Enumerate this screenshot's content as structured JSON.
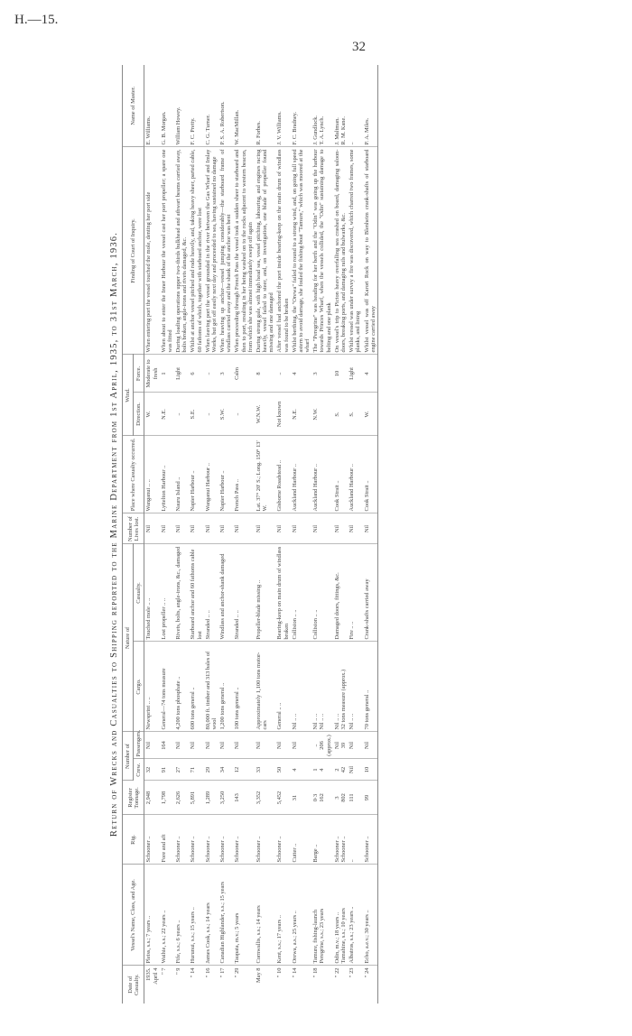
{
  "page": {
    "reference": "H.—15.",
    "number": "32"
  },
  "title": "Return of Wrecks and Casualties to Shipping reported to the Marine Department from 1st April, 1935, to 31st March, 1936.",
  "headers": {
    "date": "Date of Casualty.",
    "vessel": "Vessel's Name, Class, and Age.",
    "rig": "Rig.",
    "tonnage": "Register Tonnage.",
    "number_of": "Number of",
    "crew": "Crew.",
    "passengers": "Passengers.",
    "nature_of": "Nature of",
    "cargo": "Cargo.",
    "casualty": "Casualty.",
    "lives": "Number of Lives lost.",
    "place": "Place where Casualty occurred.",
    "wind": "Wind.",
    "direction": "Direction.",
    "force": "Force.",
    "finding": "Finding of Court of Inquiry.",
    "master": "Name of Master."
  },
  "rows": [
    {
      "date": "1935.\nApril 4",
      "vessel": "Pleiss, s.s.; 7 years ..",
      "rig": "Schooner ..",
      "tonnage": "2,948",
      "crew": "32",
      "passengers": "Nil",
      "cargo": "Newsprint .. ..",
      "casualty": "Touched mole .. ..",
      "lives": "Nil",
      "place": "Wanganui .. ..",
      "direction": "W.",
      "force": "Moderate to fresh",
      "finding": "When entering port the vessel touched the mole, denting her port side",
      "master": "E. Williams."
    },
    {
      "date": "\" 7",
      "vessel": "Waihie, s.s.; 22 years ..",
      "rig": "Fore and aft",
      "tonnage": "1,798",
      "crew": "91",
      "passengers": "164",
      "cargo": "General—74 tons measure",
      "casualty": "Lost propeller .. ..",
      "lives": "Nil",
      "place": "Lyttelton Harbour ..",
      "direction": "N.E.",
      "force": "1",
      "finding": "When about to enter the Inner Harbour the vessel cast her port propeller; a spare one was fitted",
      "master": "G. B. Morgan."
    },
    {
      "date": "\" 9",
      "vessel": "Fife, s.s.; 6 years ..",
      "rig": "Schooner ..",
      "tonnage": "2,626",
      "crew": "27",
      "passengers": "Nil",
      "cargo": "4,200 tons phosphate ..",
      "casualty": "Rivets, bolts, angle-irons, &c., damaged",
      "lives": "Nil",
      "place": "Nauru Island ..",
      "direction": "..",
      "force": "Light",
      "finding": "During loading operations upper two-thirds bulkhead and athwart beams carried away, bolts broken, angle-irons and rivets damaged, &c.",
      "master": "William Howey."
    },
    {
      "date": "\" 14",
      "vessel": "Hurunui, s.s.; 15 years ..",
      "rig": "Schooner ..",
      "tonnage": "5,891",
      "crew": "71",
      "passengers": "Nil",
      "cargo": "600 tons general ..",
      "casualty": "Starboard anchor and 60 fathoms cable lost",
      "lives": "Nil",
      "place": "Napier Harbour ..",
      "direction": "S.E.",
      "force": "6",
      "finding": "Whilst at anchor vessel pitched and rode heavily, and, taking heavy sheer, parted cable, 60 fathoms of which, together with starboard anchor, were lost",
      "master": "F. C. Pretty."
    },
    {
      "date": "\" 16",
      "vessel": "James Cook, s.s.; 14 years",
      "rig": "Schooner ..",
      "tonnage": "1,289",
      "crew": "29",
      "passengers": "Nil",
      "cargo": "80,000 ft. timber and 313 bales of wool",
      "casualty": "Stranded .. ..",
      "lives": "Nil",
      "place": "Wanganui Harbour ..",
      "direction": "..",
      "force": "..",
      "finding": "When leaving port the vessel grounded in the river between the Gas Wharf and Imlay Works, but got off easily next day and proceeded to sea, having sustained no damage",
      "master": "C. G. Turner."
    },
    {
      "date": "\" 17",
      "vessel": "Canadian Highlander, s.s.; 15 years",
      "rig": "Schooner ..",
      "tonnage": "3,250",
      "crew": "34",
      "passengers": "Nil",
      "cargo": "1,200 tons general ..",
      "casualty": "Windlass and anchor-shank damaged",
      "lives": "Nil",
      "place": "Napier Harbour ..",
      "direction": "S.W.",
      "force": "3",
      "finding": "When heaving up anchor—vessel jumping considerably—the starboard frame of windlass carried away and the shank of the anchor was bent",
      "master": "P. S. A. Robertson."
    },
    {
      "date": "\" 29",
      "vessel": "Taupata, m.v.; 5 years",
      "rig": "Schooner ..",
      "tonnage": "143",
      "crew": "12",
      "passengers": "Nil",
      "cargo": "100 tons general ..",
      "casualty": "Stranded .. ..",
      "lives": "Nil",
      "place": "French Pass ..",
      "direction": "..",
      "force": "Calm",
      "finding": "When proceeding through French Pass the vessel took a sudden sheer to starboard and then to port, resulting in her being washed on to the rocks adjacent to western beacon, from which she was almost immediately swept off again",
      "master": "W. MacMillan."
    },
    {
      "date": "May 8",
      "vessel": "Cornwallis, s.s.; 14 years",
      "rig": "Schooner ..",
      "tonnage": "3,352",
      "crew": "33",
      "passengers": "Nil",
      "cargo": "Approximately 1,100 tons motor-cars",
      "casualty": "Propeller-blade missing ..",
      "lives": "Nil",
      "place": "Lat. 37° 20′ S.; Long. 150° 13′ W.",
      "direction": "W.N.W.",
      "force": "8",
      "finding": "During strong gale, with high head sea, vessel pitching, labouring, and engines racing heavily, vessel failed to steer, and, on investigation, one blade of propeller found missing and one damaged",
      "master": "R. Forbes."
    },
    {
      "date": "\" 10",
      "vessel": "Kent, s.s.; 17 years ..",
      "rig": "Schooner ..",
      "tonnage": "5,452",
      "crew": "50",
      "passengers": "Nil",
      "cargo": "General .. ..",
      "casualty": "Bearing-keep on main drum of windlass broken",
      "lives": "Nil",
      "place": "Gisborne Roadstead ..",
      "direction": "Not known",
      "force": "..",
      "finding": "After vessel had anchored the port inside bearing-keep on the main drum of windlass was found to be broken",
      "master": "J. V. Williams."
    },
    {
      "date": "\" 14",
      "vessel": "Orewa, a.s.; 25 years ..",
      "rig": "Cutter ..",
      "tonnage": "31",
      "crew": "4",
      "passengers": "Nil",
      "cargo": "Nil .. ..",
      "casualty": "Collision .. ..",
      "lives": "Nil",
      "place": "Auckland Harbour ..",
      "direction": "N.E.",
      "force": "4",
      "finding": "Whilst berthing, the \"Orewa\" failed to round to a strong wind, and, on going full speed astern to avoid damage, she fouled the fishing-boat \"Tamure,\" which was moored at the wharf",
      "master": "F. C. Bradney."
    },
    {
      "date": "\" 18",
      "vessel": "Tamure, fishing-launch\nPeregrine, s.s.; 23 years",
      "rig": "Barge ..",
      "tonnage": "0·3\n162",
      "crew": "1\n4",
      "passengers": "..\n206 (approx.)",
      "cargo": "Nil .. ..\nNil .. ..",
      "casualty": "Collision .. ..",
      "lives": "Nil",
      "place": "Auckland Harbour ..",
      "direction": "N.W.",
      "force": "3",
      "finding": "The \"Peregrine\" was heading for her berth and the \"Odin\" was going up the harbour towards Princes Wharf, when the vessels collided, the \"Odin\" sustaining damage to belting and one plank",
      "master": "J. Gundlock.\nT. A. Lynch."
    },
    {
      "date": "\" 22",
      "vessel": "Odin, m.v.; 18 years ..\nTamahine, s.s.; 10 years",
      "rig": "Schooner ..\nSchooner ..",
      "tonnage": "3\n802",
      "crew": "2\n42",
      "passengers": "Nil\n39",
      "cargo": "Nil .. ..\n32 tons measure (approx.)",
      "casualty": "Damaged doors, fittings, &c.",
      "lives": "Nil",
      "place": "Cook Strait ..",
      "direction": "S.",
      "force": "10",
      "finding": "On vessel's trip to Picton heavy overfalling sea crashed on board, damaging saloon-doors, breaking ports, and damaging rails and bulwarks, &c.",
      "master": "J. Maltman.\nR. M. Kane."
    },
    {
      "date": "\" 23",
      "vessel": "Albatros, s.s.; 23 years ..",
      "rig": "..",
      "tonnage": "111",
      "crew": "Nil",
      "passengers": "Nil",
      "cargo": "Nil .. ..",
      "casualty": "Fire .. ..",
      "lives": "Nil",
      "place": "Auckland Harbour ..",
      "direction": "S.",
      "force": "Light",
      "finding": "Whilst vessel was under survey a fire was discovered, which charred two frames, some planks, and lining",
      "master": ".."
    },
    {
      "date": "\" 24",
      "vessel": "Echo, a.e.v.; 30 years ..",
      "rig": "Schooner ..",
      "tonnage": "99",
      "crew": "10",
      "passengers": "Nil",
      "cargo": "70 tons general ..",
      "casualty": "Crank-shafts carried away",
      "lives": "Nil",
      "place": "Cook Strait ..",
      "direction": "W.",
      "force": "4",
      "finding": "Whilst vessel was off Karori Rock on way to Blenheim crank-shafts of starboard engine carried away",
      "master": "P. A. Miles."
    }
  ]
}
